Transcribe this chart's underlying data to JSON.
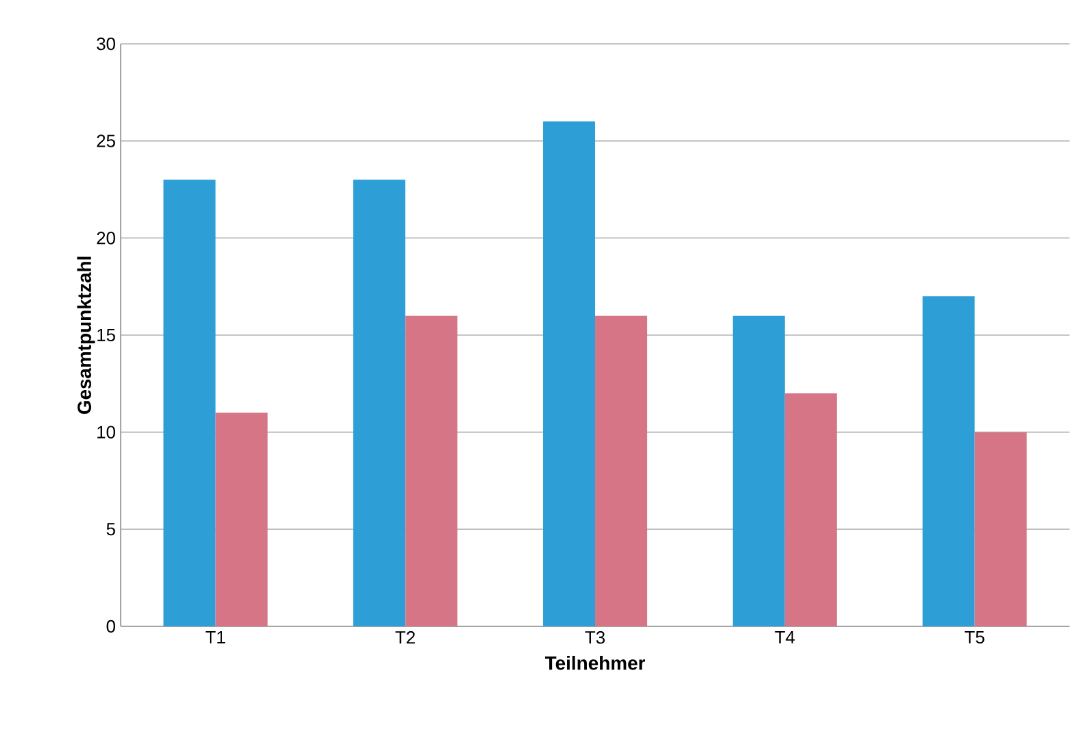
{
  "chart_data": {
    "type": "bar",
    "xlabel": "Teilnehmer",
    "ylabel": "Gesamtpunktzahl",
    "categories": [
      "T1",
      "T2",
      "T3",
      "T4",
      "T5"
    ],
    "series": [
      {
        "color": "#2e9fd6",
        "values": [
          23,
          23,
          26,
          16,
          17
        ]
      },
      {
        "color": "#d57585",
        "values": [
          11,
          16,
          16,
          12,
          10
        ]
      }
    ],
    "ylim": [
      0,
      30
    ],
    "yticks": [
      0,
      5,
      10,
      15,
      20,
      25,
      30
    ],
    "grid": "y"
  }
}
